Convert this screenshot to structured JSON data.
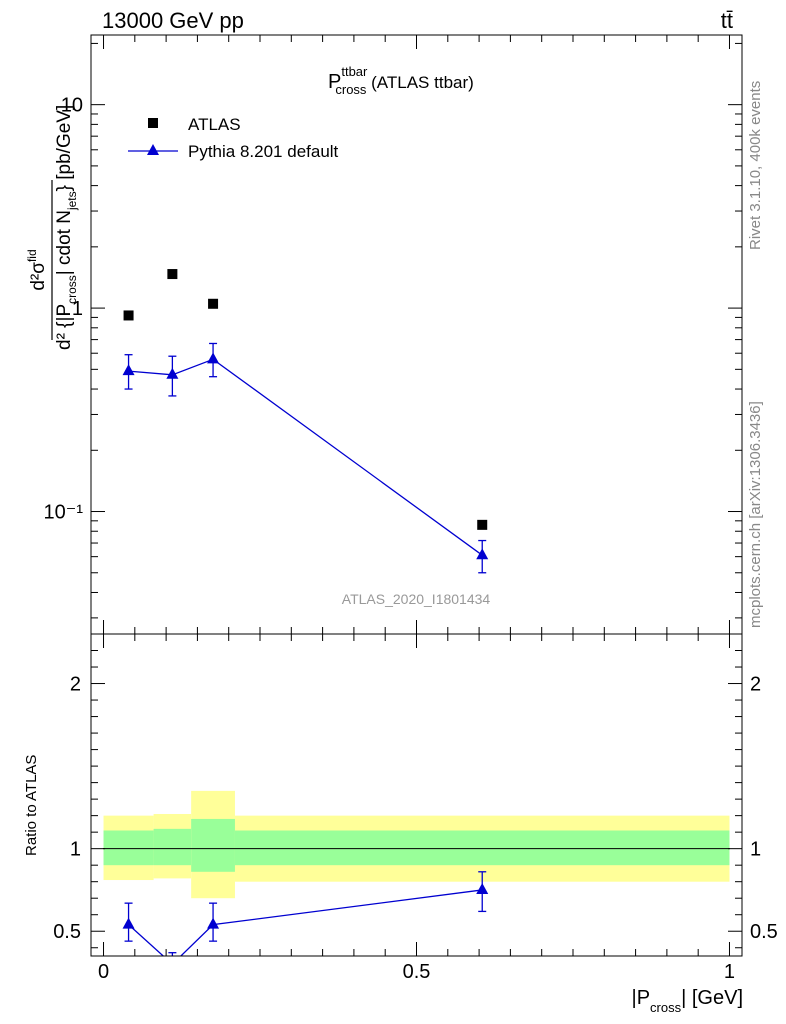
{
  "header": {
    "energy_label": "13000 GeV pp",
    "process_label": "tt̄"
  },
  "side_labels": {
    "rivet": "Rivet 3.1.10,  400k events",
    "mcplots": "mcplots.cern.ch [arXiv:1306.3436]"
  },
  "analysis_id": "ATLAS_2020_I1801434",
  "colors": {
    "data": "#000000",
    "mc": "#0000d0",
    "band_inner": "#99ff99",
    "band_outer": "#ffff99"
  },
  "chart_data": [
    {
      "type": "scatter",
      "title_main": "P",
      "title_sup": "ttbar",
      "title_sub": "cross",
      "title_suffix": " (ATLAS ttbar)",
      "ylabel": "d²σ^fid / d²{|P_cross| cdot N_jets} [pb/GeV]",
      "yscale": "log",
      "ylim": [
        0.025,
        22
      ],
      "xlim": [
        -0.02,
        1.02
      ],
      "y_tick_labels": [
        "10⁻¹",
        "1",
        "10"
      ],
      "legend_position": "top-left",
      "series": [
        {
          "name": "ATLAS",
          "marker": "square",
          "x": [
            0.04,
            0.11,
            0.175,
            0.605
          ],
          "y": [
            0.92,
            1.47,
            1.05,
            0.086
          ]
        },
        {
          "name": "Pythia 8.201 default",
          "marker": "triangle",
          "x": [
            0.04,
            0.11,
            0.175,
            0.605
          ],
          "y": [
            0.49,
            0.47,
            0.56,
            0.061
          ],
          "yerr_low": [
            0.09,
            0.1,
            0.1,
            0.011
          ],
          "yerr_high": [
            0.1,
            0.11,
            0.11,
            0.011
          ]
        }
      ]
    },
    {
      "type": "line",
      "ylabel": "Ratio to ATLAS",
      "xlabel": "|P_cross| [GeV]",
      "ylim": [
        0.35,
        2.3
      ],
      "xlim": [
        -0.02,
        1.02
      ],
      "x_tick_labels": [
        "0",
        "0.5",
        "1"
      ],
      "y_tick_labels": [
        "0.5",
        "1",
        "2"
      ],
      "bands": [
        {
          "x_low": 0.0,
          "x_high": 0.08,
          "inner_low": 0.9,
          "inner_high": 1.11,
          "outer_low": 0.81,
          "outer_high": 1.2
        },
        {
          "x_low": 0.08,
          "x_high": 0.14,
          "inner_low": 0.9,
          "inner_high": 1.12,
          "outer_low": 0.82,
          "outer_high": 1.21
        },
        {
          "x_low": 0.14,
          "x_high": 0.21,
          "inner_low": 0.86,
          "inner_high": 1.18,
          "outer_low": 0.7,
          "outer_high": 1.35
        },
        {
          "x_low": 0.21,
          "x_high": 1.0,
          "inner_low": 0.9,
          "inner_high": 1.11,
          "outer_low": 0.8,
          "outer_high": 1.2
        }
      ],
      "series": [
        {
          "name": "Pythia 8.201 default",
          "x": [
            0.04,
            0.11,
            0.175,
            0.605
          ],
          "y": [
            0.54,
            0.3,
            0.54,
            0.75
          ],
          "yerr_low": [
            0.1,
            0.06,
            0.1,
            0.13
          ],
          "yerr_high": [
            0.13,
            0.07,
            0.13,
            0.11
          ]
        }
      ]
    }
  ]
}
